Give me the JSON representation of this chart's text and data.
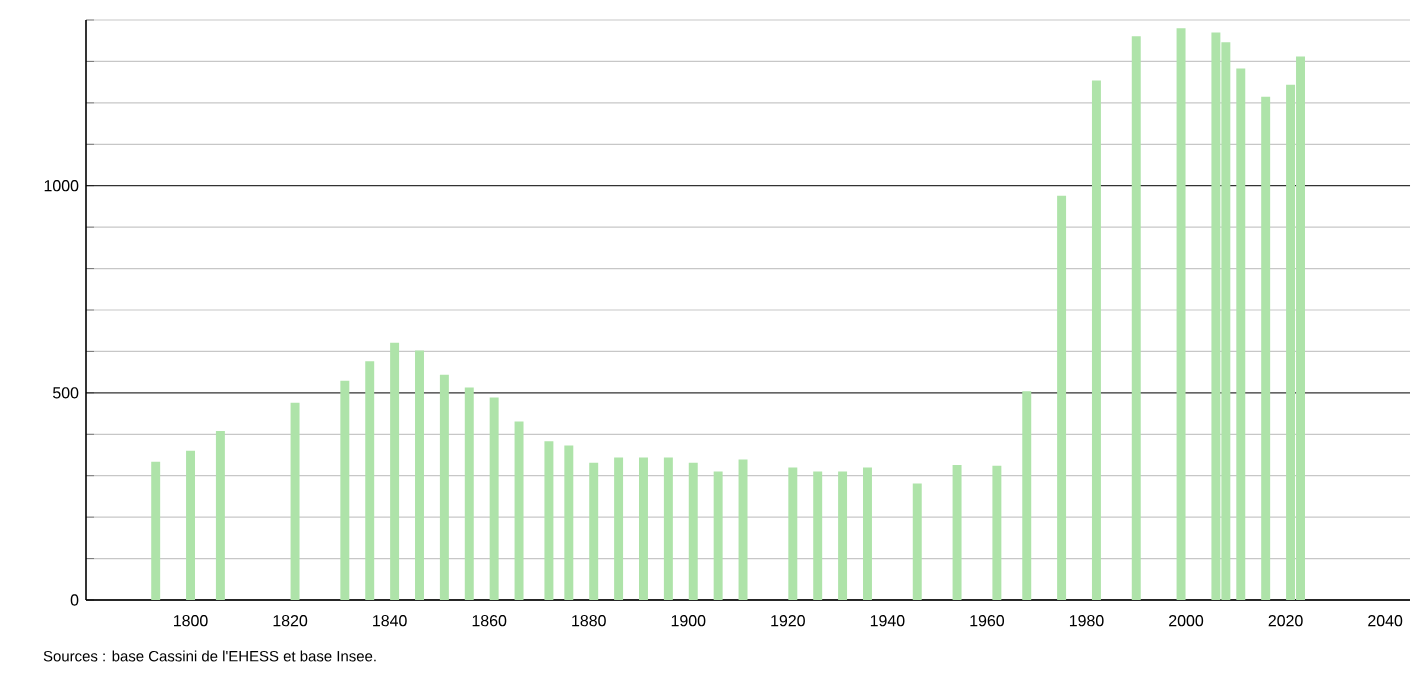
{
  "chart_data": {
    "type": "bar",
    "x": [
      1793,
      1800,
      1806,
      1821,
      1831,
      1836,
      1841,
      1846,
      1851,
      1856,
      1861,
      1866,
      1872,
      1876,
      1881,
      1886,
      1891,
      1896,
      1901,
      1906,
      1911,
      1921,
      1926,
      1931,
      1936,
      1946,
      1954,
      1962,
      1968,
      1975,
      1982,
      1990,
      1999,
      2006,
      2008,
      2011,
      2016,
      2021,
      2023
    ],
    "values": [
      334,
      360,
      408,
      476,
      529,
      576,
      621,
      602,
      544,
      513,
      489,
      431,
      383,
      373,
      331,
      344,
      344,
      344,
      331,
      310,
      339,
      320,
      310,
      310,
      320,
      281,
      326,
      324,
      504,
      976,
      1254,
      1361,
      1380,
      1370,
      1346,
      1283,
      1215,
      1244,
      1312
    ],
    "color": "#aee3a9",
    "xlim": [
      1779,
      2045
    ],
    "xticks": [
      1800,
      1820,
      1840,
      1860,
      1880,
      1900,
      1920,
      1940,
      1960,
      1980,
      2000,
      2020,
      2040
    ],
    "ylim": [
      0,
      1400
    ],
    "yticks": [
      0,
      {
        "value": 100,
        "label": null
      },
      {
        "value": 200,
        "label": null
      },
      {
        "value": 300,
        "label": null
      },
      {
        "value": 400,
        "label": null
      },
      500,
      {
        "value": 600,
        "label": null
      },
      {
        "value": 700,
        "label": null
      },
      {
        "value": 800,
        "label": null
      },
      {
        "value": 900,
        "label": null
      },
      1000,
      {
        "value": 1100,
        "label": null
      },
      {
        "value": 1200,
        "label": null
      },
      {
        "value": 1300,
        "label": null
      },
      {
        "value": 1400,
        "label": null
      }
    ],
    "grid": "y",
    "annotations": [
      "Sources : base Cassini de l'EHESS et base Insee."
    ]
  }
}
